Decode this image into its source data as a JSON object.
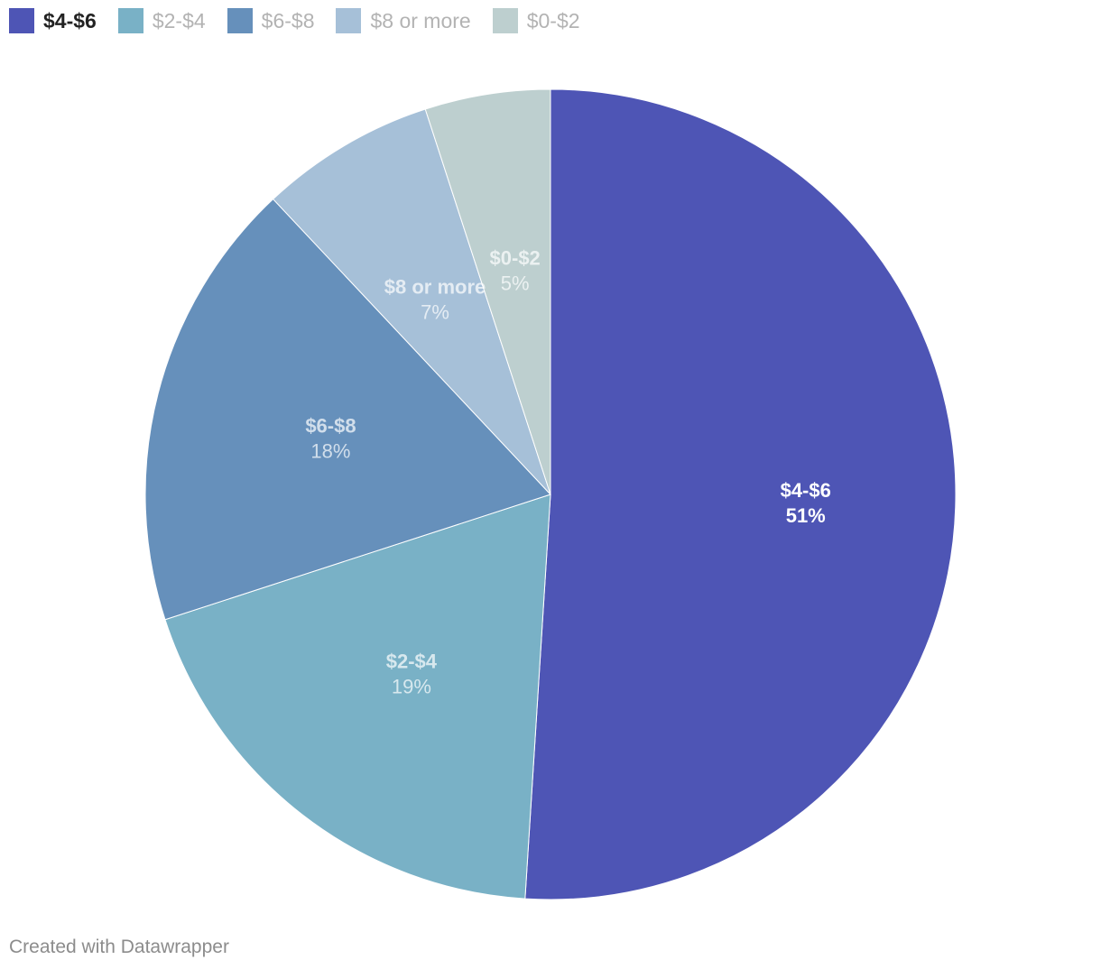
{
  "legend": {
    "items": [
      {
        "label": "$4-$6",
        "color": "#4e55b5",
        "active": true
      },
      {
        "label": "$2-$4",
        "color": "#79b1c6",
        "active": false
      },
      {
        "label": "$6-$8",
        "color": "#6690bb",
        "active": false
      },
      {
        "label": "$8 or more",
        "color": "#a6c0d8",
        "active": false
      },
      {
        "label": "$0-$2",
        "color": "#bdcfcf",
        "active": false
      }
    ]
  },
  "chart_data": {
    "type": "pie",
    "legend": "top-left",
    "slices": [
      {
        "label": "$4-$6",
        "value": 51,
        "value_label": "51%",
        "color": "#4e55b5",
        "active": true
      },
      {
        "label": "$2-$4",
        "value": 19,
        "value_label": "19%",
        "color": "#79b1c6",
        "active": false
      },
      {
        "label": "$6-$8",
        "value": 18,
        "value_label": "18%",
        "color": "#6690bb",
        "active": false
      },
      {
        "label": "$8 or more",
        "value": 7,
        "value_label": "7%",
        "color": "#a6c0d8",
        "active": false
      },
      {
        "label": "$0-$2",
        "value": 5,
        "value_label": "5%",
        "color": "#bdcfcf",
        "active": false
      }
    ]
  },
  "footer": {
    "credit": "Created with Datawrapper"
  }
}
